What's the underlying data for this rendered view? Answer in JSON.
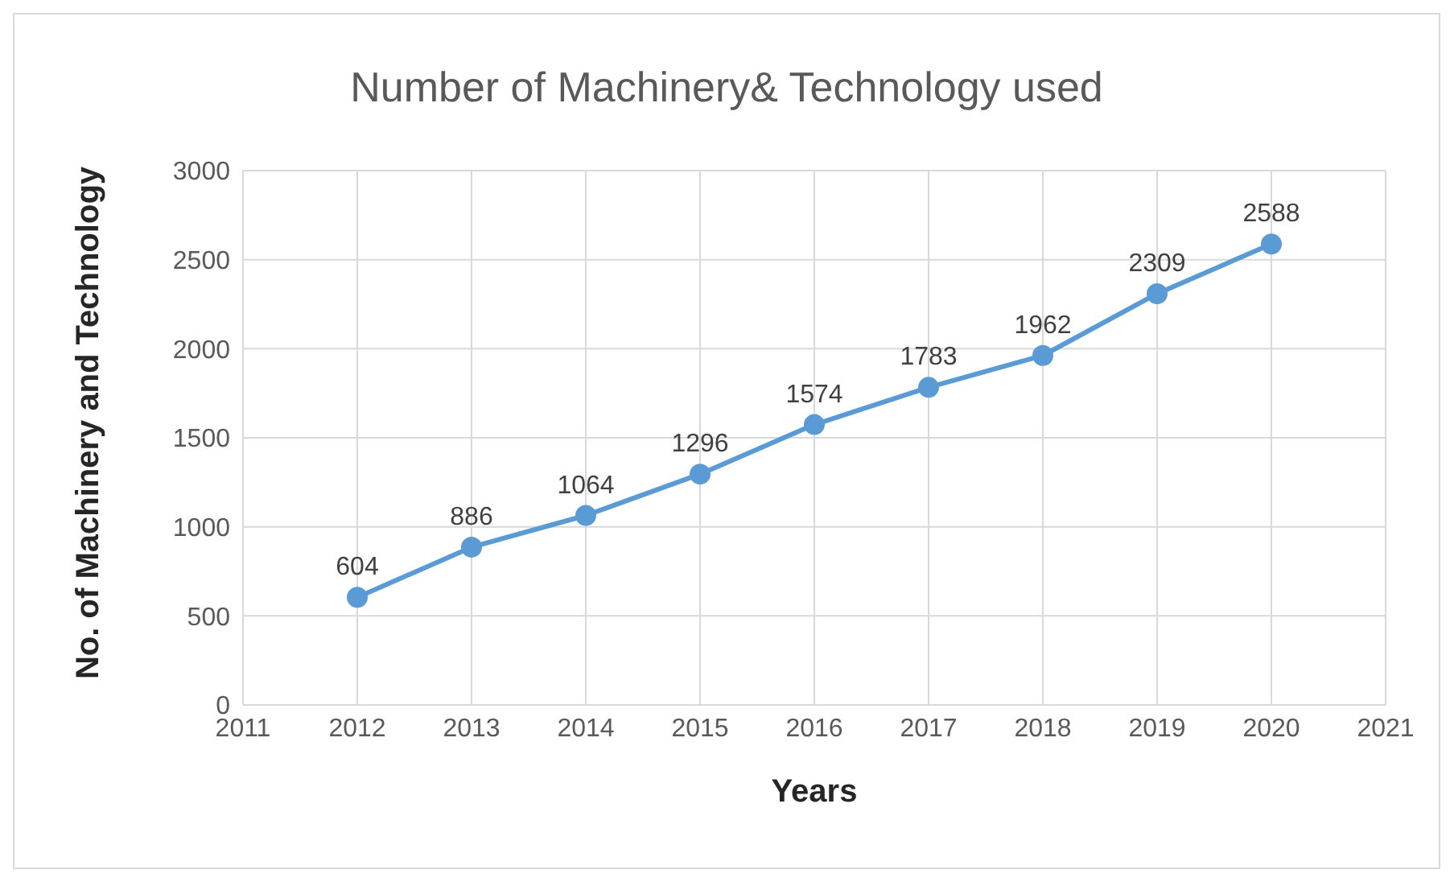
{
  "chart_data": {
    "type": "line",
    "title": "Number of Machinery& Technology used",
    "xlabel": "Years",
    "ylabel": "No. of Machinery and Technology",
    "x": [
      2012,
      2013,
      2014,
      2015,
      2016,
      2017,
      2018,
      2019,
      2020
    ],
    "series": [
      {
        "color": "#5b9bd5",
        "values": [
          604,
          886,
          1064,
          1296,
          1574,
          1783,
          1962,
          2309,
          2588
        ]
      }
    ],
    "xlim": [
      2011,
      2021
    ],
    "xticks": [
      2011,
      2012,
      2013,
      2014,
      2015,
      2016,
      2017,
      2018,
      2019,
      2020,
      2021
    ],
    "ylim": [
      0,
      3000
    ],
    "yticks": [
      0,
      500,
      1000,
      1500,
      2000,
      2500,
      3000
    ],
    "grid": true,
    "marker": "circle",
    "data_labels": true,
    "legend": false
  }
}
